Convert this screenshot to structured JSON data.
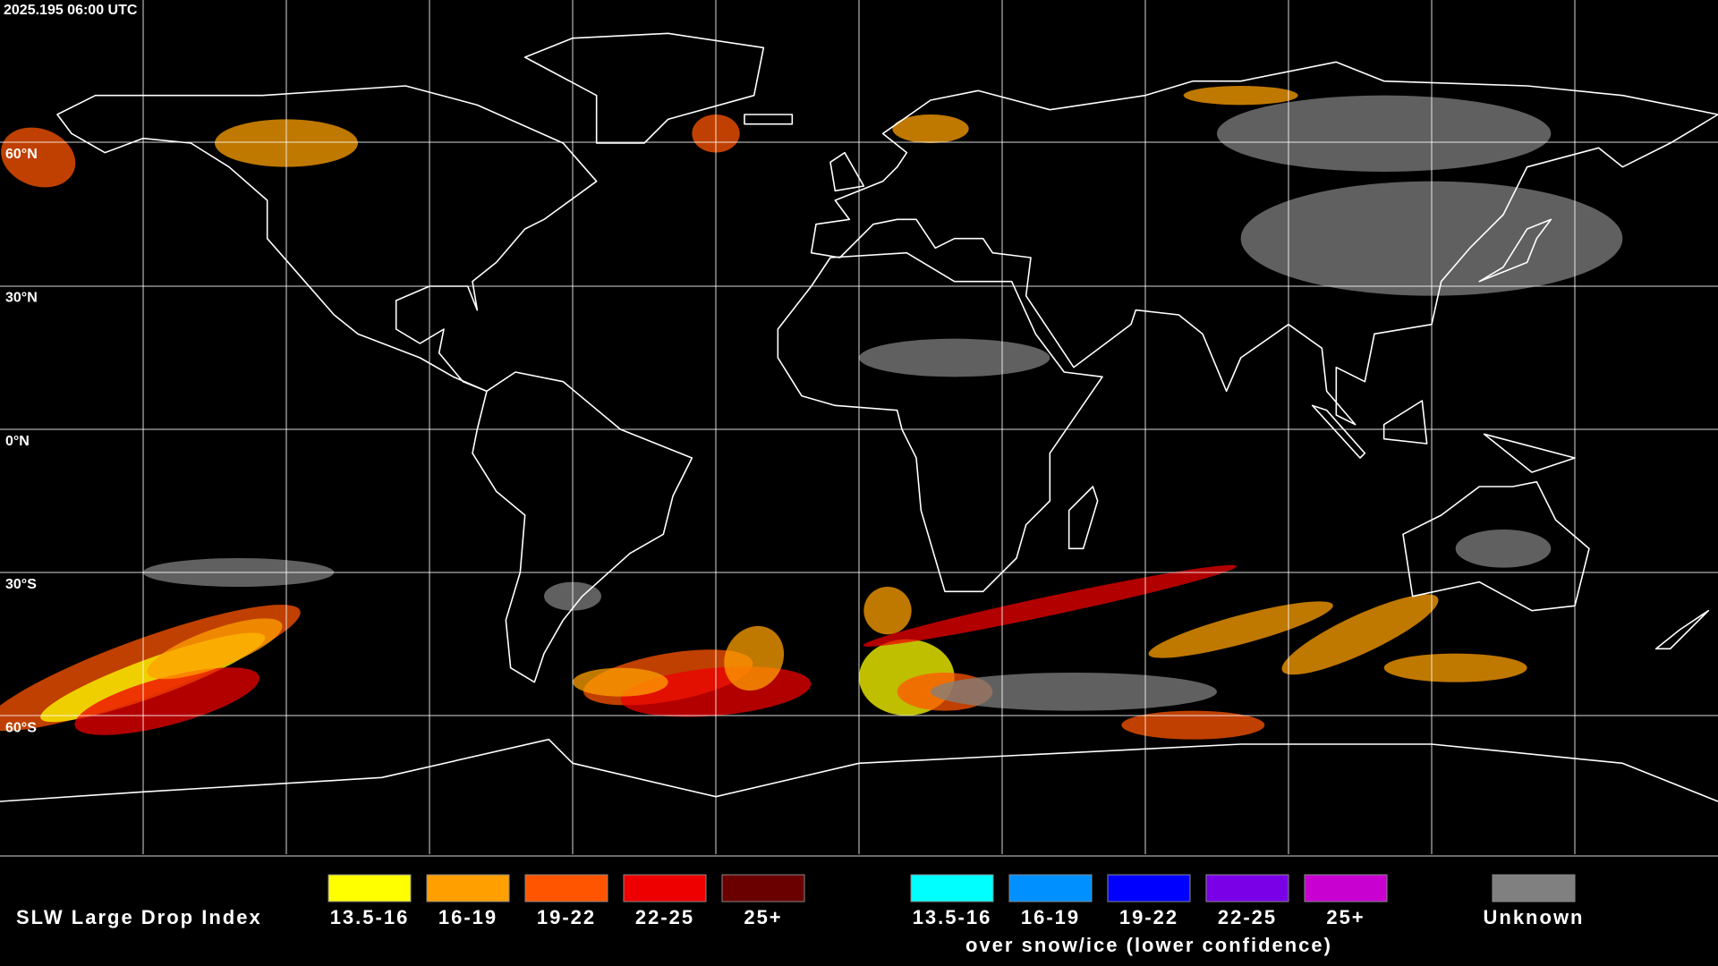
{
  "header": {
    "timestamp": "2025.195 06:00 UTC"
  },
  "grid": {
    "lat_labels": [
      "60°N",
      "30°N",
      "0°N",
      "30°S",
      "60°S"
    ]
  },
  "legend": {
    "title": "SLW Large Drop Index",
    "items": [
      {
        "label": "13.5-16",
        "color": "#ffff00"
      },
      {
        "label": "16-19",
        "color": "#ffa000"
      },
      {
        "label": "19-22",
        "color": "#ff5500"
      },
      {
        "label": "22-25",
        "color": "#ee0000"
      },
      {
        "label": "25+",
        "color": "#6a0000"
      }
    ],
    "snow_items": [
      {
        "label": "13.5-16",
        "color": "#00ffff"
      },
      {
        "label": "16-19",
        "color": "#0090ff"
      },
      {
        "label": "19-22",
        "color": "#0000ff"
      },
      {
        "label": "22-25",
        "color": "#7a00e8"
      },
      {
        "label": "25+",
        "color": "#c800d0"
      }
    ],
    "snow_note": "over snow/ice (lower confidence)",
    "unknown": {
      "label": "Unknown",
      "color": "#808080"
    }
  }
}
